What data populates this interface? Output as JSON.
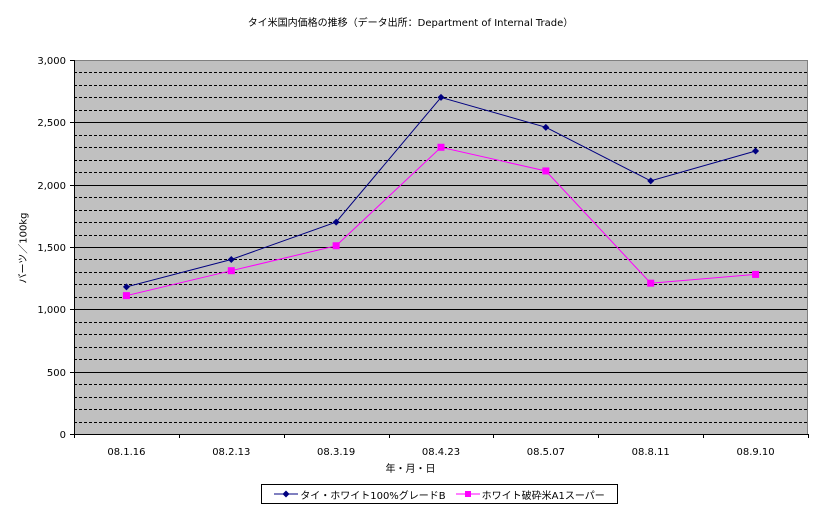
{
  "chart_data": {
    "type": "line",
    "title": "タイ米国内価格の推移（データ出所：Department of Internal Trade）",
    "xlabel": "年・月・日",
    "ylabel": "バーツ／100kg",
    "categories": [
      "08.1.16",
      "08.2.13",
      "08.3.19",
      "08.4.23",
      "08.5.07",
      "08.8.11",
      "08.9.10"
    ],
    "ylim": [
      0,
      3000
    ],
    "yticks": [
      0,
      500,
      1000,
      1500,
      2000,
      2500,
      3000
    ],
    "ytick_labels": [
      "0",
      "500",
      "1,000",
      "1,500",
      "2,000",
      "2,500",
      "3,000"
    ],
    "grid": true,
    "legend_position": "bottom",
    "series": [
      {
        "name": "タイ・ホワイト100%グレードB",
        "values": [
          1180,
          1400,
          1700,
          2700,
          2460,
          2030,
          2270
        ],
        "color": "#000080",
        "marker": "diamond"
      },
      {
        "name": "ホワイト破砕米A1スーパー",
        "values": [
          1110,
          1310,
          1510,
          2300,
          2110,
          1210,
          1280
        ],
        "color": "#ff00ff",
        "marker": "square"
      }
    ],
    "plot_background": "#c0c0c0"
  }
}
